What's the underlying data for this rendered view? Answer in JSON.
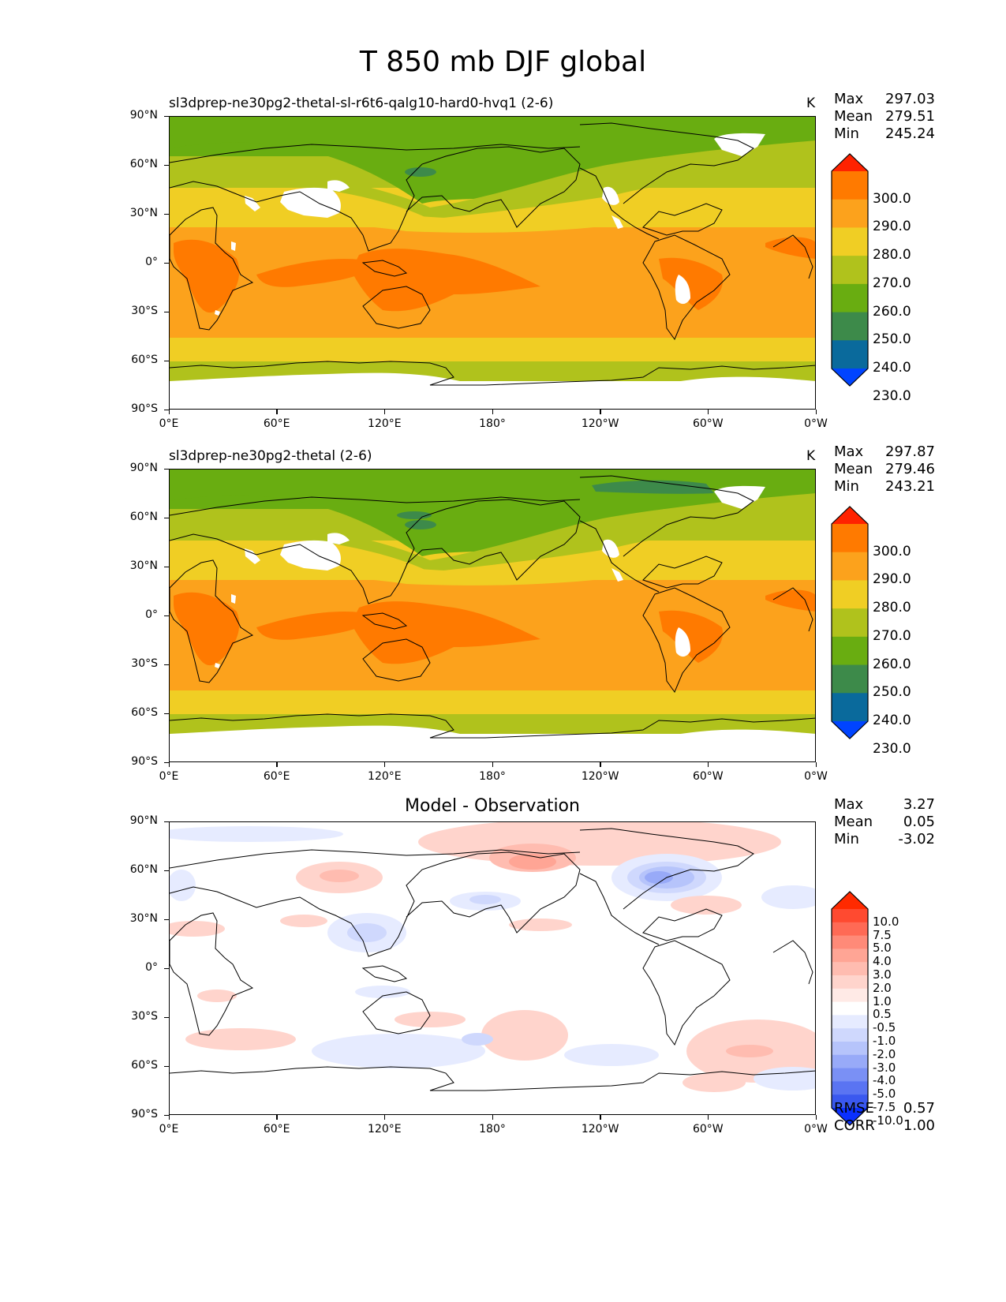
{
  "figure": {
    "title": "T 850 mb DJF global"
  },
  "axes": {
    "y_ticks": [
      "90°N",
      "60°N",
      "30°N",
      "0°",
      "30°S",
      "60°S",
      "90°S"
    ],
    "x_ticks": [
      "0°E",
      "60°E",
      "120°E",
      "180°",
      "120°W",
      "60°W",
      "0°W"
    ]
  },
  "panels": [
    {
      "title": "sl3dprep-ne30pg2-thetal-sl-r6t6-qalg10-hard0-hvq1 (2-6)",
      "units": "K",
      "stats": [
        {
          "label": "Max",
          "value": "297.03"
        },
        {
          "label": "Mean",
          "value": "279.51"
        },
        {
          "label": "Min",
          "value": "245.24"
        }
      ]
    },
    {
      "title": "sl3dprep-ne30pg2-thetal (2-6)",
      "units": "K",
      "stats": [
        {
          "label": "Max",
          "value": "297.87"
        },
        {
          "label": "Mean",
          "value": "279.46"
        },
        {
          "label": "Min",
          "value": "243.21"
        }
      ]
    },
    {
      "title": "Model - Observation",
      "units": "",
      "stats": [
        {
          "label": "Max",
          "value": "3.27"
        },
        {
          "label": "Mean",
          "value": "0.05"
        },
        {
          "label": "Min",
          "value": "-3.02"
        }
      ],
      "bottom_stats": [
        {
          "label": "RMSE",
          "value": "0.57"
        },
        {
          "label": "CORR",
          "value": "1.00"
        }
      ]
    }
  ],
  "colorbar_main": {
    "labels": [
      "300.0",
      "290.0",
      "280.0",
      "270.0",
      "260.0",
      "250.0",
      "240.0",
      "230.0"
    ],
    "colors": [
      "#ff2200",
      "#ff7a00",
      "#fca21c",
      "#f0ce24",
      "#b0c21c",
      "#69ad11",
      "#3d8a4a",
      "#0a6a9c",
      "#0044ff"
    ]
  },
  "colorbar_diff": {
    "labels": [
      "10.0",
      "7.5",
      "5.0",
      "4.0",
      "3.0",
      "2.0",
      "1.0",
      "0.5",
      "-0.5",
      "-1.0",
      "-2.0",
      "-3.0",
      "-4.0",
      "-5.0",
      "-7.5",
      "-10.0"
    ],
    "colors": [
      "#ff2a00",
      "#ff4a30",
      "#ff6a55",
      "#ff8a78",
      "#ffa595",
      "#ffbcb0",
      "#ffd4cc",
      "#ffeae6",
      "#ffffff",
      "#e6ebff",
      "#cfd8fd",
      "#b6c4fb",
      "#98aaf8",
      "#7a90f5",
      "#5a74f2",
      "#3a58ef",
      "#0a30ff"
    ]
  }
}
